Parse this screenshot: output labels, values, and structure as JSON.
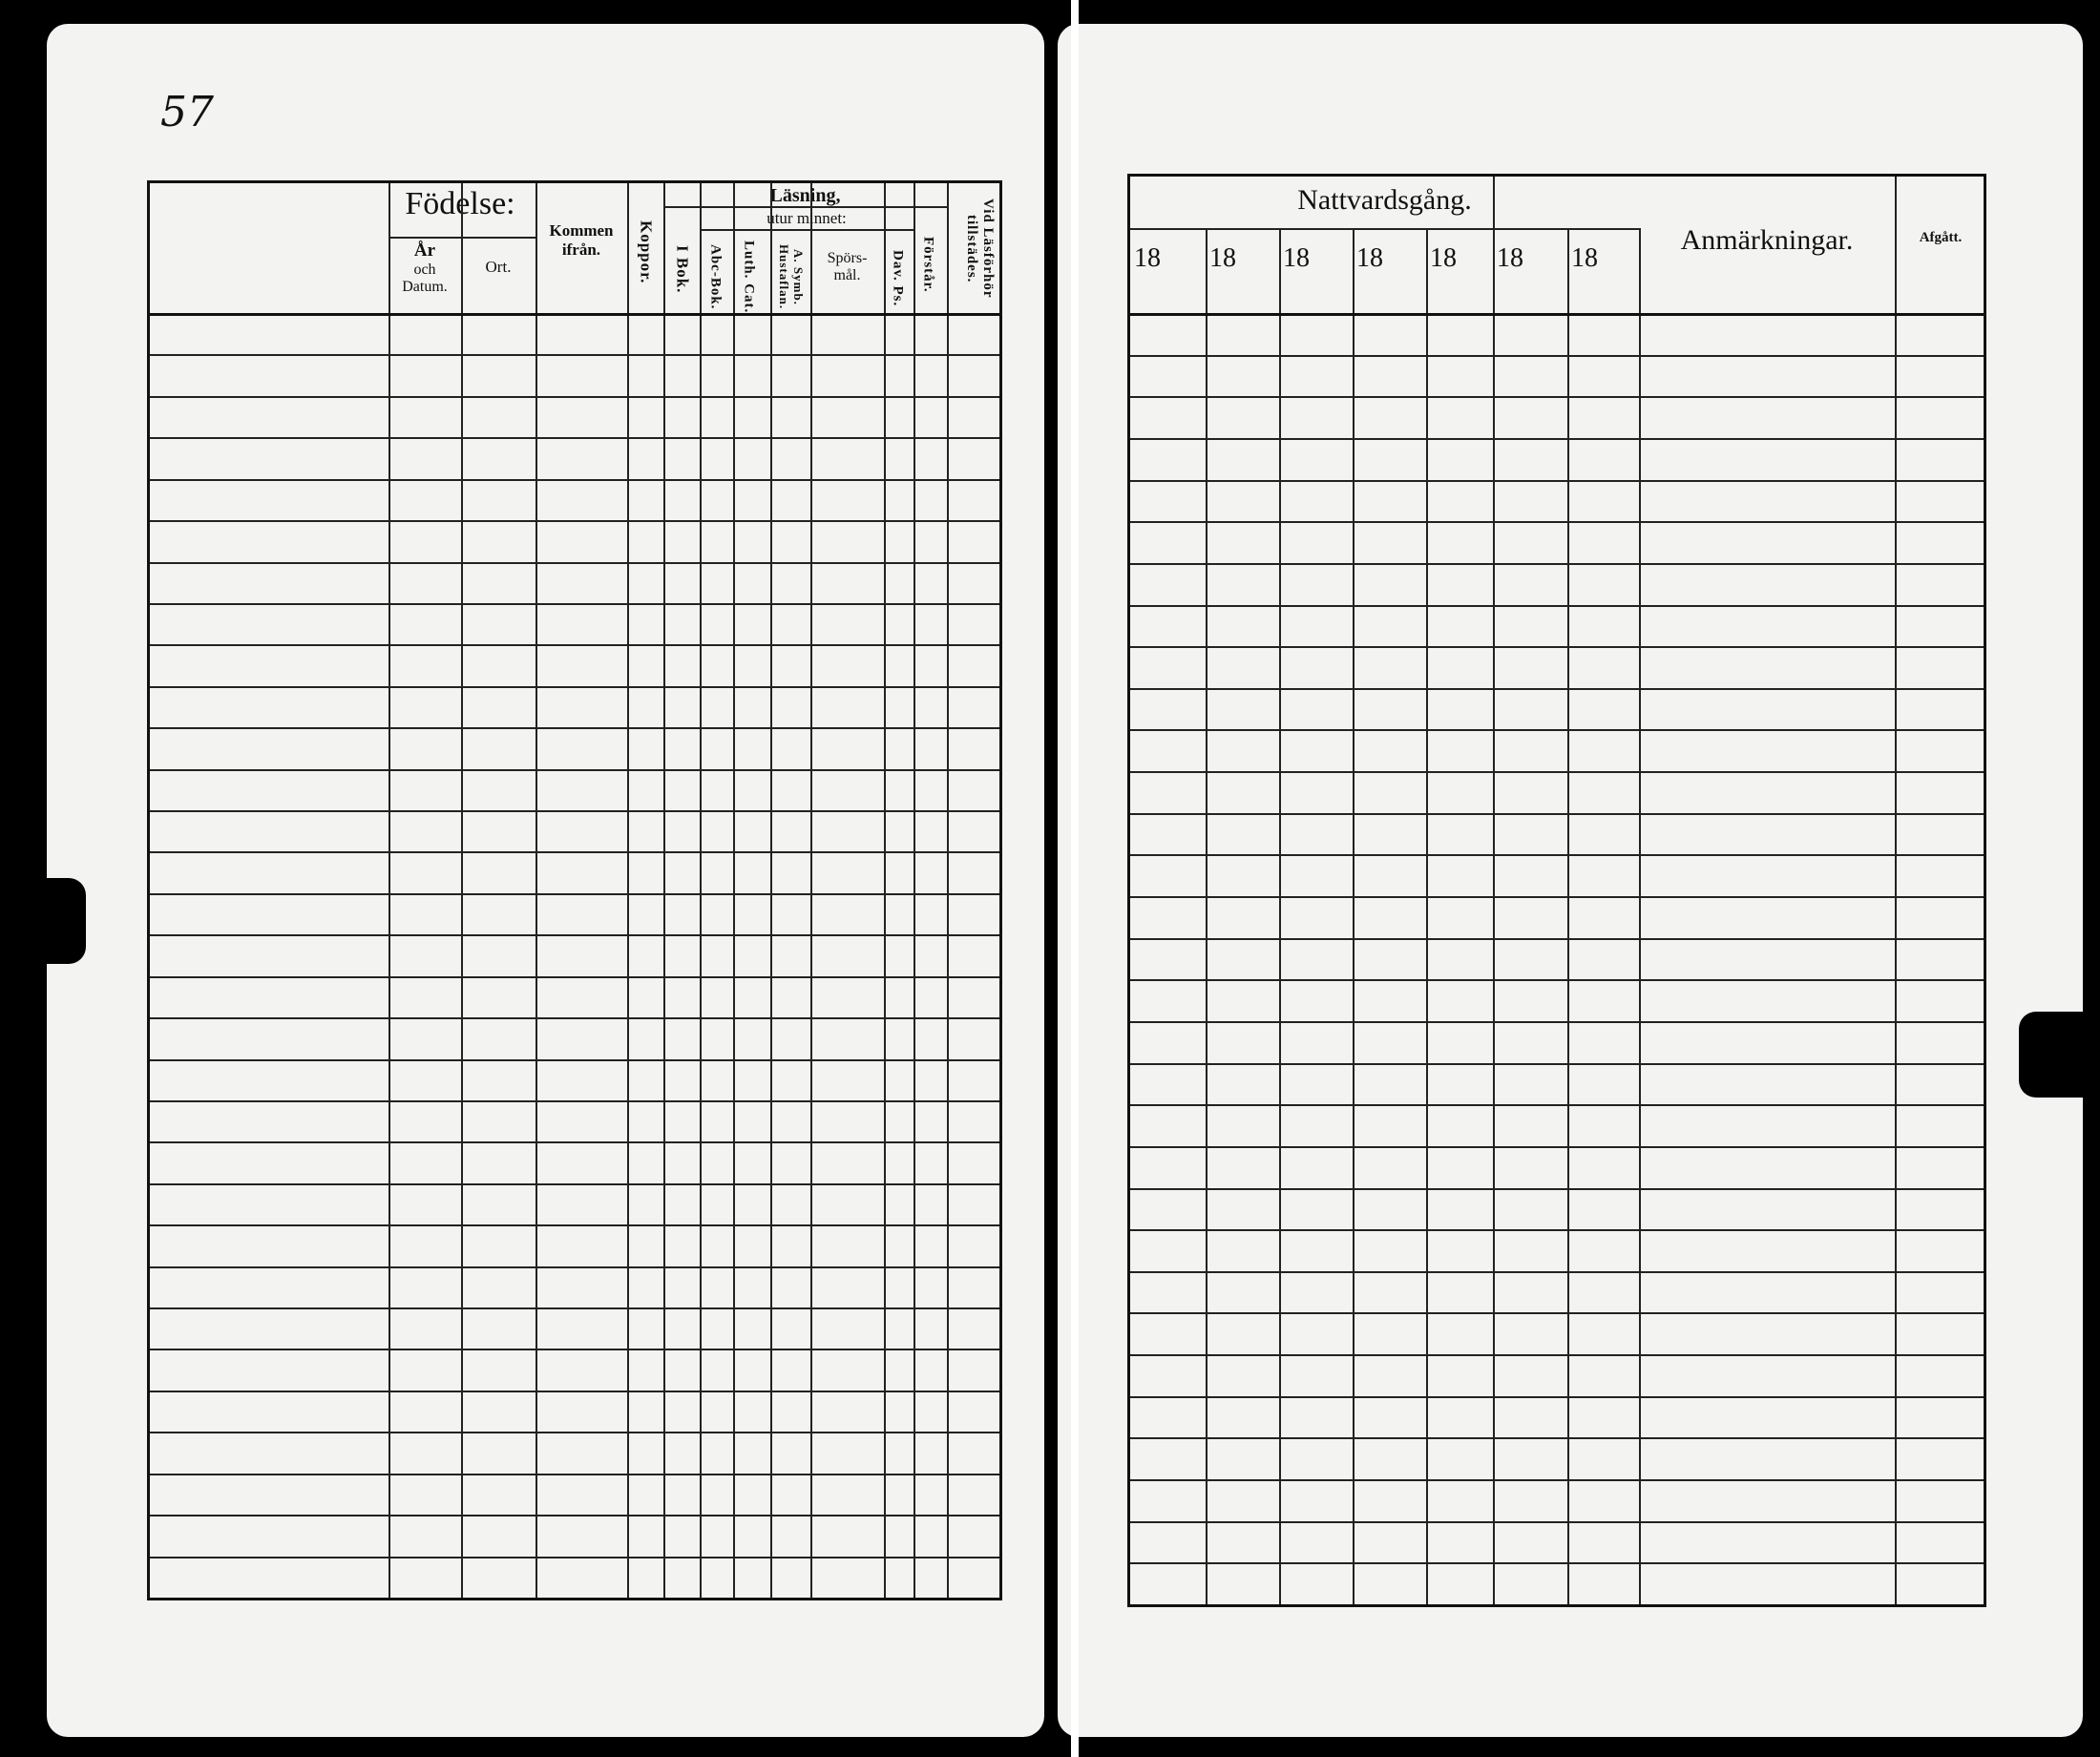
{
  "left_page": {
    "page_number": "57",
    "headers": {
      "fodelse": "Födelse:",
      "ar_och_datum": [
        "År",
        "och",
        "Datum."
      ],
      "ort": "Ort.",
      "kommen_ifran": [
        "Kommen",
        "ifrån."
      ],
      "koppor": "Koppor.",
      "lasning": "Läsning,",
      "i_bok": "I Bok.",
      "utur_minnet": "utur minnet:",
      "abc_bok": "Abc-Bok.",
      "luth_cat": "Luth. Cat.",
      "symb_hustaflan": "A. Symb. Hustaflan.",
      "sporsmal": [
        "Spörs-",
        "mål."
      ],
      "dav_ps": "Dav. Ps.",
      "forstar": "Förstår.",
      "vid_lasforhor": "Vid Läsförhör tillstädes."
    }
  },
  "right_page": {
    "headers": {
      "nattvardsgang": "Nattvardsgång.",
      "year_prefixes": [
        "18",
        "18",
        "18",
        "18",
        "18",
        "18",
        "18"
      ],
      "anmarkningar": "Anmärkningar.",
      "afgatt": "Afgått."
    }
  }
}
